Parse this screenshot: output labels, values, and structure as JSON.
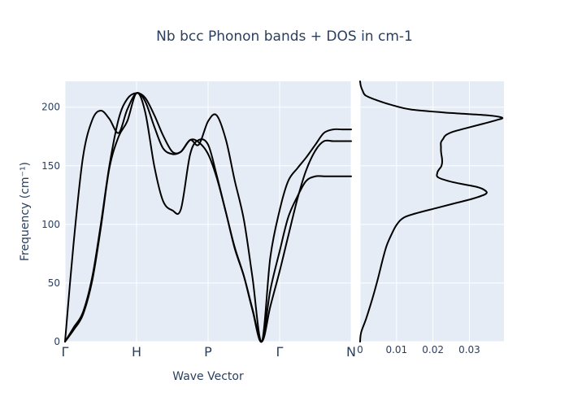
{
  "chart_data": {
    "type": "line",
    "title": "Nb bcc Phonon bands + DOS in cm-1",
    "xlabel": "Wave Vector",
    "ylabel": "Frequency (cm⁻¹)",
    "ylim": [
      0,
      222
    ],
    "y_ticks": [
      "0",
      "50",
      "100",
      "150",
      "200"
    ],
    "y_tick_values": [
      0,
      50,
      100,
      150,
      200
    ],
    "grid": true,
    "legend": "none",
    "bands": {
      "x_range": [
        0,
        4
      ],
      "high_symmetry_points": [
        {
          "label": "Γ",
          "x": 0
        },
        {
          "label": "H",
          "x": 1
        },
        {
          "label": "P",
          "x": 2
        },
        {
          "label": "Γ",
          "x": 3
        },
        {
          "label": "N",
          "x": 4
        }
      ],
      "series": [
        {
          "x": [
            0,
            0.12,
            0.25,
            0.38,
            0.5,
            0.62,
            0.75,
            0.87,
            1.0,
            1.12,
            1.25,
            1.37,
            1.5,
            1.62,
            1.75,
            1.87,
            2.0,
            2.12,
            2.25,
            2.37,
            2.5,
            2.62,
            2.75,
            2.87,
            3.0,
            3.12,
            3.25,
            3.37,
            3.5,
            3.62,
            3.75,
            3.87,
            4.0
          ],
          "values": [
            0,
            84,
            157,
            189,
            197,
            190,
            178,
            198,
            212,
            205,
            183,
            165,
            160,
            162,
            172,
            168,
            188,
            193,
            172,
            138,
            104,
            55,
            0,
            72,
            112,
            137,
            148,
            157,
            168,
            178,
            181,
            181,
            181
          ]
        },
        {
          "x": [
            0,
            0.12,
            0.25,
            0.38,
            0.5,
            0.62,
            0.75,
            0.87,
            1.0,
            1.12,
            1.25,
            1.37,
            1.5,
            1.62,
            1.75,
            1.87,
            2.0,
            2.12,
            2.25,
            2.37,
            2.5,
            2.62,
            2.75,
            2.87,
            3.0,
            3.12,
            3.25,
            3.37,
            3.5,
            3.62,
            3.75,
            3.87,
            4.0
          ],
          "values": [
            0,
            10,
            23,
            52,
            97,
            148,
            175,
            188,
            212,
            196,
            149,
            120,
            112,
            113,
            160,
            172,
            168,
            142,
            110,
            81,
            56,
            27,
            0,
            44,
            77,
            106,
            124,
            137,
            141,
            141,
            141,
            141,
            141
          ]
        },
        {
          "x": [
            0,
            0.12,
            0.25,
            0.38,
            0.5,
            0.62,
            0.75,
            0.87,
            1.0,
            1.12,
            1.25,
            1.37,
            1.5,
            1.62,
            1.75,
            1.87,
            2.0,
            2.12,
            2.25,
            2.37,
            2.5,
            2.62,
            2.75,
            2.87,
            3.0,
            3.12,
            3.25,
            3.37,
            3.5,
            3.62,
            3.75,
            3.87,
            4.0
          ],
          "values": [
            0,
            12,
            25,
            55,
            100,
            150,
            190,
            207,
            212,
            208,
            193,
            176,
            162,
            162,
            172,
            170,
            160,
            140,
            110,
            80,
            56,
            28,
            0,
            30,
            60,
            90,
            122,
            146,
            163,
            171,
            171,
            171,
            171
          ]
        }
      ]
    },
    "dos": {
      "xlim": [
        0,
        0.0395
      ],
      "x_ticks": [
        "0",
        "0.01",
        "0.02",
        "0.03"
      ],
      "x_tick_values": [
        0,
        0.01,
        0.02,
        0.03
      ],
      "frequency": [
        0,
        8,
        20,
        38,
        55,
        70,
        82,
        92,
        100,
        106,
        110,
        114,
        118,
        122,
        126,
        129,
        132,
        136,
        140,
        144,
        147,
        149,
        152,
        156,
        160,
        163,
        166,
        170,
        173,
        176,
        179,
        182,
        186,
        189,
        191,
        193,
        195,
        198,
        202,
        206,
        210,
        214,
        218,
        222
      ],
      "density": [
        0,
        0.0003,
        0.0017,
        0.0035,
        0.005,
        0.0062,
        0.0073,
        0.0087,
        0.0101,
        0.0121,
        0.016,
        0.021,
        0.026,
        0.031,
        0.0345,
        0.0343,
        0.032,
        0.0255,
        0.0215,
        0.0212,
        0.0217,
        0.0222,
        0.0225,
        0.0225,
        0.0223,
        0.0222,
        0.0222,
        0.0222,
        0.0228,
        0.0235,
        0.0255,
        0.029,
        0.034,
        0.0375,
        0.039,
        0.035,
        0.025,
        0.014,
        0.0085,
        0.0045,
        0.0015,
        0.0007,
        0.0002,
        0
      ]
    }
  }
}
